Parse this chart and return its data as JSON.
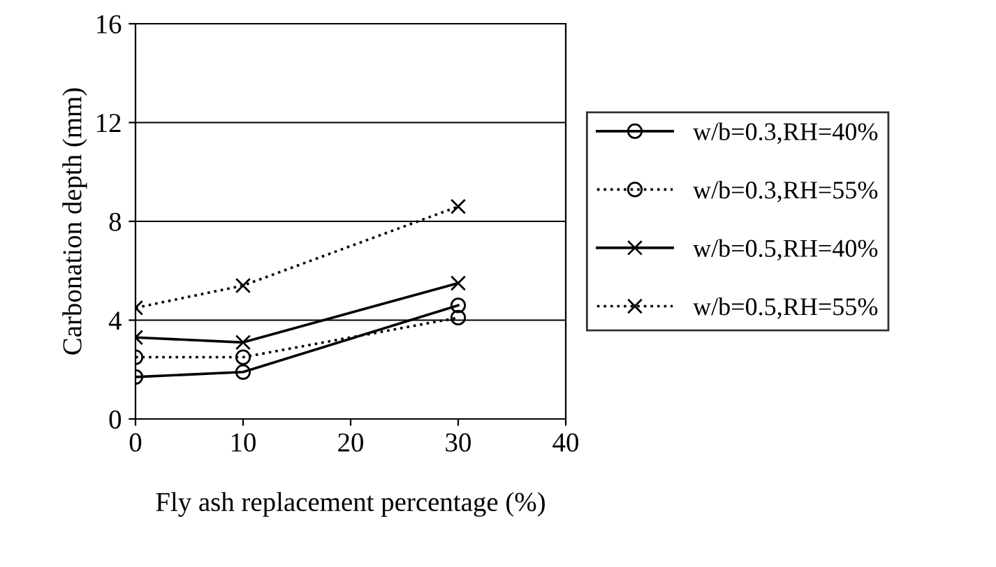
{
  "chart_data": {
    "type": "line",
    "xlabel": "Fly ash replacement percentage (%)",
    "ylabel": "Carbonation depth (mm)",
    "x": [
      0,
      10,
      30
    ],
    "xlim": [
      0,
      40
    ],
    "xticks": [
      0,
      10,
      20,
      30,
      40
    ],
    "ylim": [
      0,
      16
    ],
    "yticks": [
      0,
      4,
      8,
      12,
      16
    ],
    "grid": "y",
    "legend": "right",
    "series": [
      {
        "name": "w/b=0.3,RH=40%",
        "color": "#000000",
        "marker": "circle",
        "line_style": "solid",
        "values": [
          1.7,
          1.9,
          4.6
        ]
      },
      {
        "name": "w/b=0.3,RH=55%",
        "color": "#000000",
        "marker": "circle",
        "line_style": "dotted",
        "values": [
          2.5,
          2.5,
          4.1
        ]
      },
      {
        "name": "w/b=0.5,RH=40%",
        "color": "#000000",
        "marker": "cross",
        "line_style": "solid",
        "values": [
          3.3,
          3.1,
          5.5
        ]
      },
      {
        "name": "w/b=0.5,RH=55%",
        "color": "#000000",
        "marker": "cross",
        "line_style": "dotted",
        "values": [
          4.5,
          5.4,
          8.6
        ]
      }
    ]
  }
}
